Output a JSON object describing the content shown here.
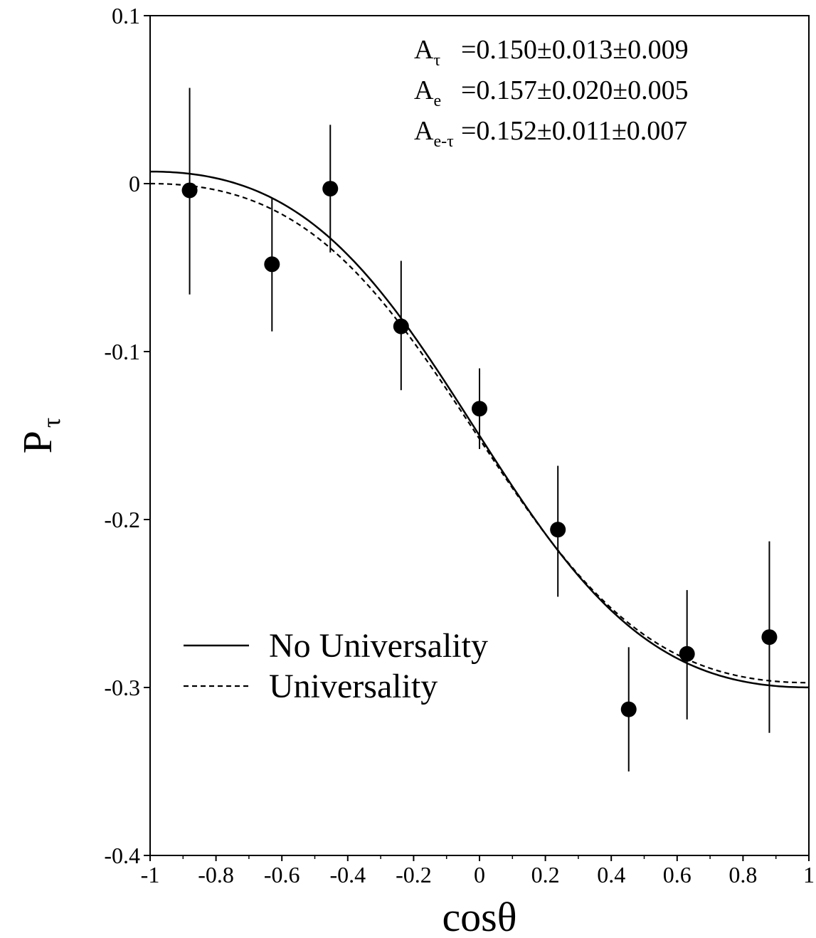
{
  "chart_data": {
    "type": "scatter",
    "xlabel": "cosθ",
    "ylabel_main": "P",
    "ylabel_sub": "τ",
    "xlim": [
      -1,
      1
    ],
    "ylim": [
      -0.4,
      0.1
    ],
    "xticks": [
      -1,
      -0.8,
      -0.6,
      -0.4,
      -0.2,
      0,
      0.2,
      0.4,
      0.6,
      0.8,
      1
    ],
    "xtick_labels": [
      "-1",
      "-0.8",
      "-0.6",
      "-0.4",
      "-0.2",
      "0",
      "0.2",
      "0.4",
      "0.6",
      "0.8",
      "1"
    ],
    "yticks": [
      0.1,
      0,
      -0.1,
      -0.2,
      -0.3,
      -0.4
    ],
    "ytick_labels": [
      "0.1",
      "0",
      "-0.1",
      "-0.2",
      "-0.3",
      "-0.4"
    ],
    "grid": false,
    "points": [
      {
        "x": -0.88,
        "y": -0.004,
        "err_lo": -0.066,
        "err_hi": 0.057
      },
      {
        "x": -0.63,
        "y": -0.048,
        "err_lo": -0.088,
        "err_hi": -0.009
      },
      {
        "x": -0.453,
        "y": -0.003,
        "err_lo": -0.041,
        "err_hi": 0.035
      },
      {
        "x": -0.238,
        "y": -0.085,
        "err_lo": -0.123,
        "err_hi": -0.046
      },
      {
        "x": 0.0,
        "y": -0.134,
        "err_lo": -0.158,
        "err_hi": -0.11
      },
      {
        "x": 0.238,
        "y": -0.206,
        "err_lo": -0.246,
        "err_hi": -0.168
      },
      {
        "x": 0.453,
        "y": -0.313,
        "err_lo": -0.35,
        "err_hi": -0.276
      },
      {
        "x": 0.63,
        "y": -0.28,
        "err_lo": -0.319,
        "err_hi": -0.242
      },
      {
        "x": 0.88,
        "y": -0.27,
        "err_lo": -0.327,
        "err_hi": -0.213
      }
    ],
    "series": [
      {
        "name": "No Universality",
        "style": "solid",
        "A_tau": 0.15,
        "A_e": 0.157
      },
      {
        "name": "Universality",
        "style": "dashed",
        "A_tau": 0.152,
        "A_e": 0.152
      }
    ],
    "legend_position": "bottom-left",
    "annotations": [
      {
        "main": "A",
        "sub": "τ",
        "text": "=0.150±0.013±0.009"
      },
      {
        "main": "A",
        "sub": "e",
        "text": "=0.157±0.020±0.005"
      },
      {
        "main": "A",
        "sub": "e-τ",
        "text": "=0.152±0.011±0.007"
      }
    ]
  }
}
